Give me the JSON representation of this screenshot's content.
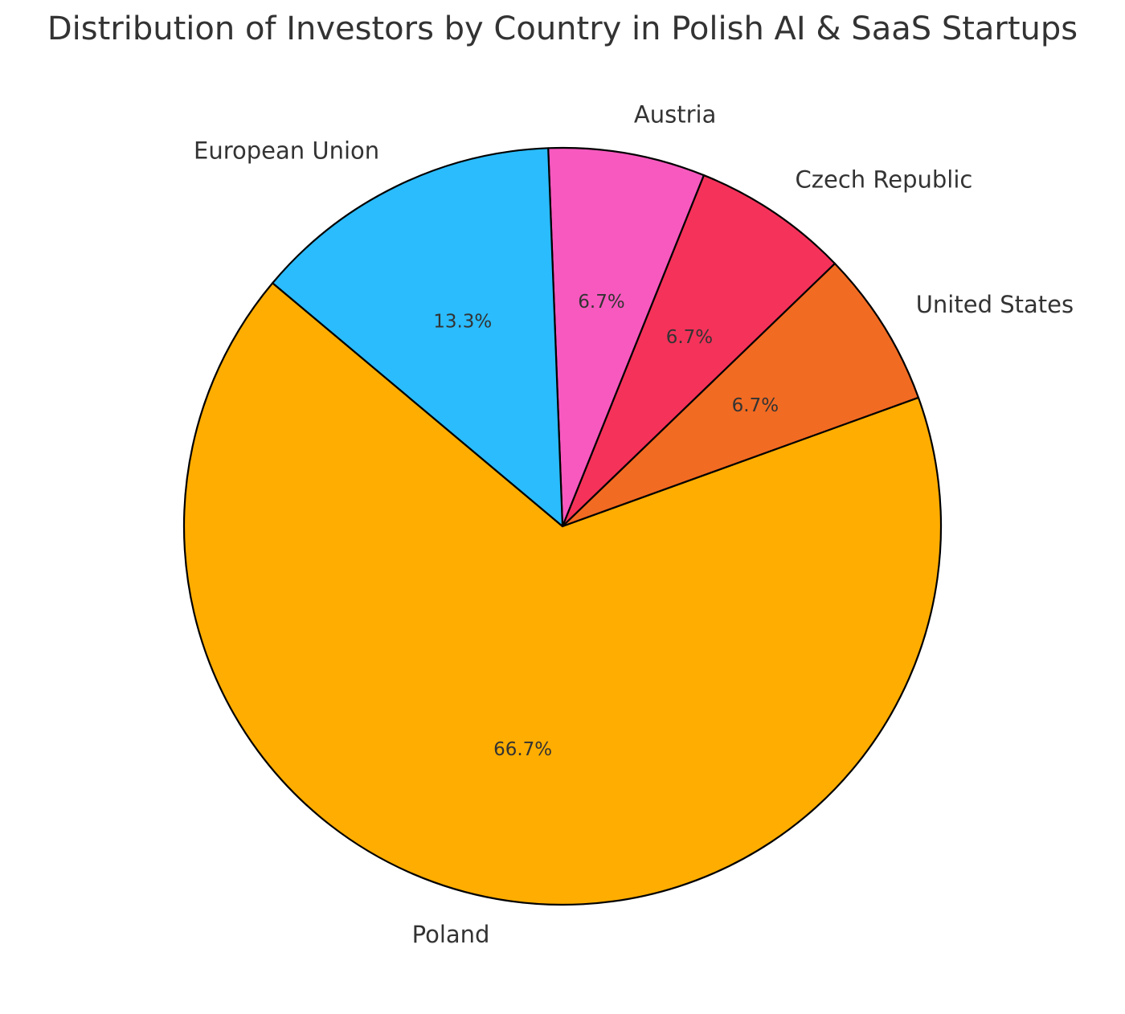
{
  "chart_data": {
    "type": "pie",
    "title": "Distribution of Investors by Country in Polish AI & SaaS Startups",
    "categories": [
      "Poland",
      "United States",
      "Czech Republic",
      "Austria",
      "European Union"
    ],
    "values": [
      66.7,
      6.7,
      6.7,
      6.7,
      13.3
    ],
    "value_labels": [
      "66.7%",
      "6.7%",
      "6.7%",
      "6.7%",
      "13.3%"
    ],
    "colors": [
      "#ffad00",
      "#f26b22",
      "#f5325a",
      "#f759bf",
      "#2abcfd"
    ],
    "start_angle": 140
  }
}
